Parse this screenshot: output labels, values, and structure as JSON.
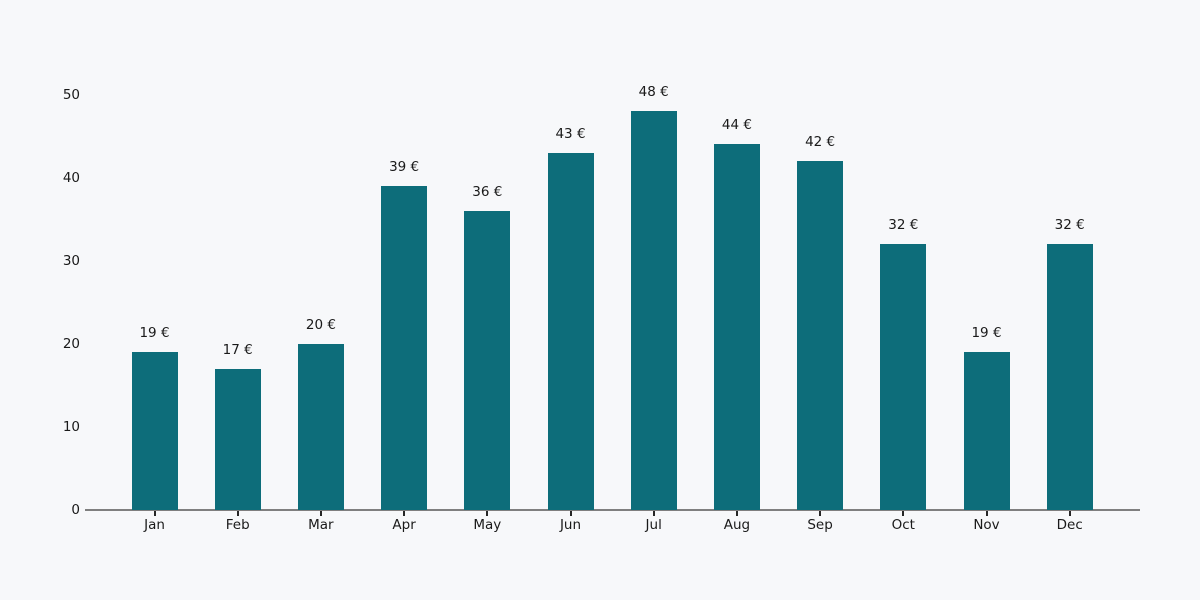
{
  "chart_data": {
    "type": "bar",
    "title": "",
    "xlabel": "",
    "ylabel": "",
    "categories": [
      "Jan",
      "Feb",
      "Mar",
      "Apr",
      "May",
      "Jun",
      "Jul",
      "Aug",
      "Sep",
      "Oct",
      "Nov",
      "Dec"
    ],
    "values": [
      19,
      17,
      20,
      39,
      36,
      43,
      48,
      44,
      42,
      32,
      19,
      32
    ],
    "value_labels": [
      "19 €",
      "17 €",
      "20 €",
      "39 €",
      "36 €",
      "43 €",
      "48 €",
      "44 €",
      "42 €",
      "32 €",
      "19 €",
      "32 €"
    ],
    "currency": "€",
    "ylim": [
      0,
      50
    ],
    "yticks": [
      0,
      10,
      20,
      30,
      40,
      50
    ],
    "grid": false,
    "legend": null,
    "colors": {
      "bar": "#0d6d7a",
      "background": "#f7f8fa",
      "axis_line": "#7f7f7f",
      "tick_mark": "#262626",
      "text": "#1a1a1a"
    }
  }
}
